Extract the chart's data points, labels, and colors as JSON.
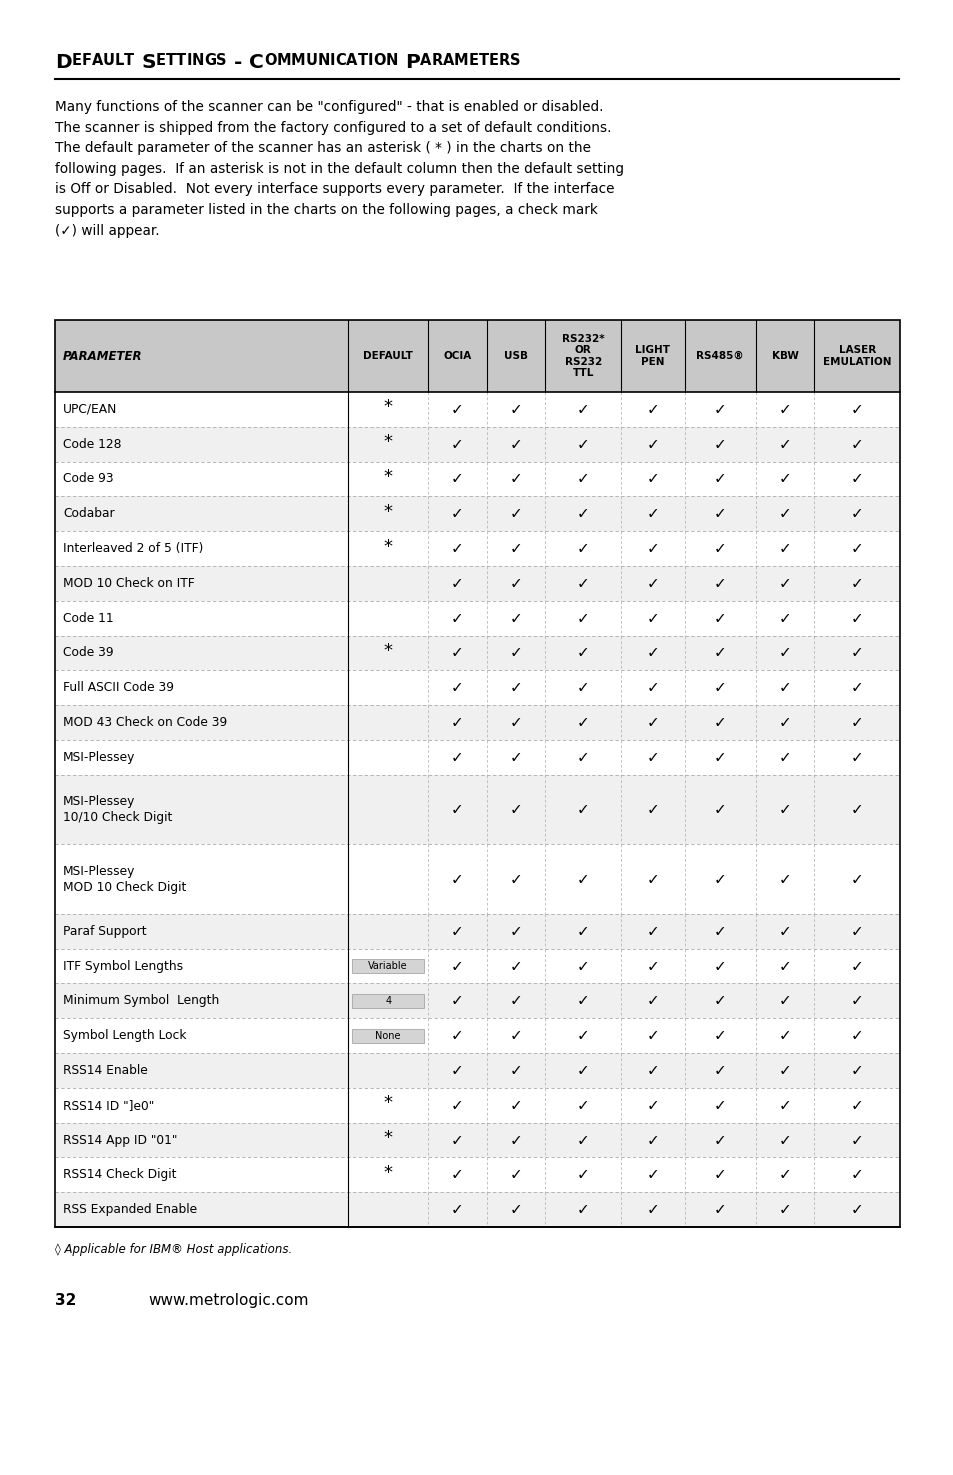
{
  "title_parts": [
    {
      "text": "D",
      "caps": true
    },
    {
      "text": "efault ",
      "caps": false
    },
    {
      "text": "S",
      "caps": true
    },
    {
      "text": "ettings",
      "caps": false
    },
    {
      "text": " - ",
      "caps": false
    },
    {
      "text": "C",
      "caps": true
    },
    {
      "text": "ommunication ",
      "caps": false
    },
    {
      "text": "P",
      "caps": true
    },
    {
      "text": "arameters",
      "caps": false
    }
  ],
  "title_full": "DEFAULT SETTINGS - COMMUNICATION PARAMETERS",
  "intro_text": "Many functions of the scanner can be \"configured\" - that is enabled or disabled.\nThe scanner is shipped from the factory configured to a set of default conditions.\nThe default parameter of the scanner has an asterisk ( * ) in the charts on the\nfollowing pages.  If an asterisk is not in the default column then the default setting\nis Off or Disabled.  Not every interface supports every parameter.  If the interface\nsupports a parameter listed in the charts on the following pages, a check mark\n(✓) will appear.",
  "col_headers": [
    "PARAMETER",
    "DEFAULT",
    "OCIA",
    "USB",
    "RS232*\nOR\nRS232\nTTL",
    "LIGHT\nPEN",
    "RS485®",
    "KBW",
    "LASER\nEMULATION"
  ],
  "rows": [
    {
      "param": "UPC/EAN",
      "default": "*",
      "ocia": true,
      "usb": true,
      "rs232": true,
      "light": true,
      "rs485": true,
      "kbw": true,
      "laser": true
    },
    {
      "param": "Code 128",
      "default": "*",
      "ocia": true,
      "usb": true,
      "rs232": true,
      "light": true,
      "rs485": true,
      "kbw": true,
      "laser": true
    },
    {
      "param": "Code 93",
      "default": "*",
      "ocia": true,
      "usb": true,
      "rs232": true,
      "light": true,
      "rs485": true,
      "kbw": true,
      "laser": true
    },
    {
      "param": "Codabar",
      "default": "*",
      "ocia": true,
      "usb": true,
      "rs232": true,
      "light": true,
      "rs485": true,
      "kbw": true,
      "laser": true
    },
    {
      "param": "Interleaved 2 of 5 (ITF)",
      "default": "*",
      "ocia": true,
      "usb": true,
      "rs232": true,
      "light": true,
      "rs485": true,
      "kbw": true,
      "laser": true
    },
    {
      "param": "MOD 10 Check on ITF",
      "default": "",
      "ocia": true,
      "usb": true,
      "rs232": true,
      "light": true,
      "rs485": true,
      "kbw": true,
      "laser": true
    },
    {
      "param": "Code 11",
      "default": "",
      "ocia": true,
      "usb": true,
      "rs232": true,
      "light": true,
      "rs485": true,
      "kbw": true,
      "laser": true
    },
    {
      "param": "Code 39",
      "default": "*",
      "ocia": true,
      "usb": true,
      "rs232": true,
      "light": true,
      "rs485": true,
      "kbw": true,
      "laser": true
    },
    {
      "param": "Full ASCII Code 39",
      "default": "",
      "ocia": true,
      "usb": true,
      "rs232": true,
      "light": true,
      "rs485": true,
      "kbw": true,
      "laser": true
    },
    {
      "param": "MOD 43 Check on Code 39",
      "default": "",
      "ocia": true,
      "usb": true,
      "rs232": true,
      "light": true,
      "rs485": true,
      "kbw": true,
      "laser": true
    },
    {
      "param": "MSI-Plessey",
      "default": "",
      "ocia": true,
      "usb": true,
      "rs232": true,
      "light": true,
      "rs485": true,
      "kbw": true,
      "laser": true
    },
    {
      "param": "MSI-Plessey\n10/10 Check Digit",
      "default": "",
      "ocia": true,
      "usb": true,
      "rs232": true,
      "light": true,
      "rs485": true,
      "kbw": true,
      "laser": true
    },
    {
      "param": "MSI-Plessey\nMOD 10 Check Digit",
      "default": "",
      "ocia": true,
      "usb": true,
      "rs232": true,
      "light": true,
      "rs485": true,
      "kbw": true,
      "laser": true
    },
    {
      "param": "Paraf Support",
      "default": "",
      "ocia": true,
      "usb": true,
      "rs232": true,
      "light": true,
      "rs485": true,
      "kbw": true,
      "laser": true
    },
    {
      "param": "ITF Symbol Lengths",
      "default": "Variable",
      "ocia": true,
      "usb": true,
      "rs232": true,
      "light": true,
      "rs485": true,
      "kbw": true,
      "laser": true
    },
    {
      "param": "Minimum Symbol  Length",
      "default": "4",
      "ocia": true,
      "usb": true,
      "rs232": true,
      "light": true,
      "rs485": true,
      "kbw": true,
      "laser": true
    },
    {
      "param": "Symbol Length Lock",
      "default": "None",
      "ocia": true,
      "usb": true,
      "rs232": true,
      "light": true,
      "rs485": true,
      "kbw": true,
      "laser": true
    },
    {
      "param": "RSS14 Enable",
      "default": "",
      "ocia": true,
      "usb": true,
      "rs232": true,
      "light": true,
      "rs485": true,
      "kbw": true,
      "laser": true
    },
    {
      "param": "RSS14 ID \"]e0\"",
      "default": "*",
      "ocia": true,
      "usb": true,
      "rs232": true,
      "light": true,
      "rs485": true,
      "kbw": true,
      "laser": true
    },
    {
      "param": "RSS14 App ID \"01\"",
      "default": "*",
      "ocia": true,
      "usb": true,
      "rs232": true,
      "light": true,
      "rs485": true,
      "kbw": true,
      "laser": true
    },
    {
      "param": "RSS14 Check Digit",
      "default": "*",
      "ocia": true,
      "usb": true,
      "rs232": true,
      "light": true,
      "rs485": true,
      "kbw": true,
      "laser": true
    },
    {
      "param": "RSS Expanded Enable",
      "default": "",
      "ocia": true,
      "usb": true,
      "rs232": true,
      "light": true,
      "rs485": true,
      "kbw": true,
      "laser": true
    }
  ],
  "footnote": "◊ Applicable for IBM® Host applications.",
  "header_bg": "#c8c8c8",
  "row_bg_even": "#ffffff",
  "row_bg_odd": "#f0f0f0",
  "dashed_color": "#aaaaaa",
  "text_color": "#000000",
  "check_mark": "✓"
}
